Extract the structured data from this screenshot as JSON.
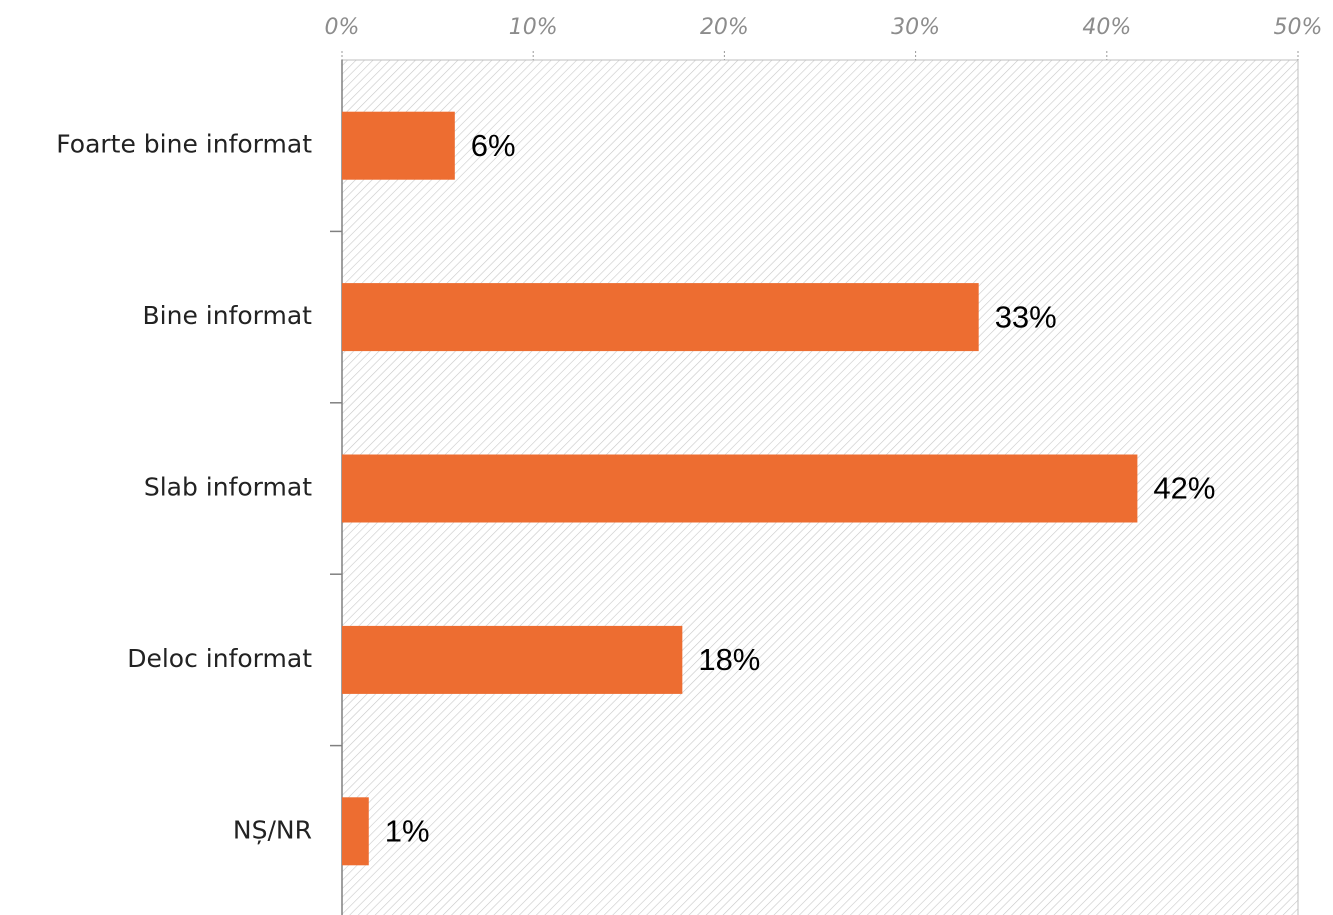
{
  "chart_data": {
    "type": "hbar",
    "categories": [
      "Foarte bine informat",
      "Bine informat",
      "Slab informat",
      "Deloc informat",
      "NȘ/NR"
    ],
    "values": [
      5.9,
      33.3,
      41.6,
      17.8,
      1.4
    ],
    "value_labels": [
      "6%",
      "33%",
      "42%",
      "18%",
      "1%"
    ],
    "color": "#ed6d31",
    "xlim": [
      0,
      50
    ],
    "xticks": [
      {
        "value": 0,
        "label": "0%"
      },
      {
        "value": 10,
        "label": "10%"
      },
      {
        "value": 20,
        "label": "20%"
      },
      {
        "value": 30,
        "label": "30%"
      },
      {
        "value": 40,
        "label": "40%"
      },
      {
        "value": 50,
        "label": "50%"
      }
    ]
  }
}
